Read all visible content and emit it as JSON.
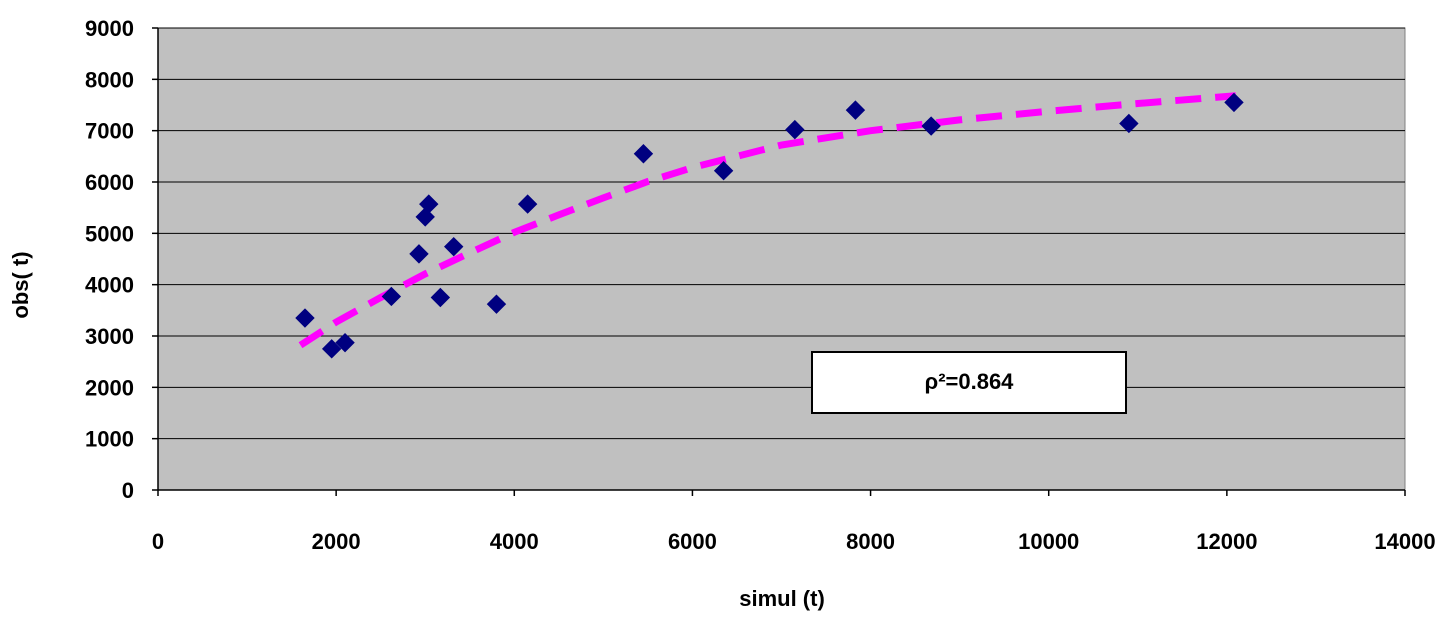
{
  "chart_data": {
    "type": "scatter",
    "title": "",
    "xlabel": "simul (t)",
    "ylabel": "obs( t)",
    "xlim": [
      0,
      14000
    ],
    "ylim": [
      0,
      9000
    ],
    "x_ticks": [
      0,
      2000,
      4000,
      6000,
      8000,
      10000,
      12000,
      14000
    ],
    "y_ticks": [
      0,
      1000,
      2000,
      3000,
      4000,
      5000,
      6000,
      7000,
      8000,
      9000
    ],
    "grid": "horizontal",
    "legend": "none",
    "series": [
      {
        "marker": "diamond",
        "points": [
          {
            "x": 1650,
            "y": 3350
          },
          {
            "x": 1950,
            "y": 2750
          },
          {
            "x": 2100,
            "y": 2870
          },
          {
            "x": 2620,
            "y": 3770
          },
          {
            "x": 2930,
            "y": 4600
          },
          {
            "x": 3000,
            "y": 5320
          },
          {
            "x": 3040,
            "y": 5570
          },
          {
            "x": 3170,
            "y": 3750
          },
          {
            "x": 3320,
            "y": 4740
          },
          {
            "x": 3800,
            "y": 3620
          },
          {
            "x": 4150,
            "y": 5570
          },
          {
            "x": 5450,
            "y": 6550
          },
          {
            "x": 6350,
            "y": 6220
          },
          {
            "x": 7150,
            "y": 7020
          },
          {
            "x": 7830,
            "y": 7400
          },
          {
            "x": 8680,
            "y": 7090
          },
          {
            "x": 10900,
            "y": 7140
          },
          {
            "x": 12080,
            "y": 7550
          }
        ]
      }
    ],
    "trendline": {
      "style": "dashed",
      "points": [
        {
          "x": 1600,
          "y": 2820
        },
        {
          "x": 2000,
          "y": 3270
        },
        {
          "x": 2500,
          "y": 3750
        },
        {
          "x": 3000,
          "y": 4210
        },
        {
          "x": 3500,
          "y": 4620
        },
        {
          "x": 4000,
          "y": 5020
        },
        {
          "x": 4500,
          "y": 5360
        },
        {
          "x": 5000,
          "y": 5690
        },
        {
          "x": 5500,
          "y": 6010
        },
        {
          "x": 6000,
          "y": 6280
        },
        {
          "x": 7000,
          "y": 6720
        },
        {
          "x": 8000,
          "y": 7000
        },
        {
          "x": 9000,
          "y": 7210
        },
        {
          "x": 10000,
          "y": 7380
        },
        {
          "x": 11000,
          "y": 7530
        },
        {
          "x": 12100,
          "y": 7680
        }
      ]
    },
    "colors": {
      "plot_bg": "#c0c0c0",
      "marker": "#000080",
      "trendline": "#ff00ff",
      "gridline": "#000000",
      "text": "#000000"
    },
    "annotation": {
      "text": "ρ²=0.864",
      "position": "lower-right"
    }
  }
}
